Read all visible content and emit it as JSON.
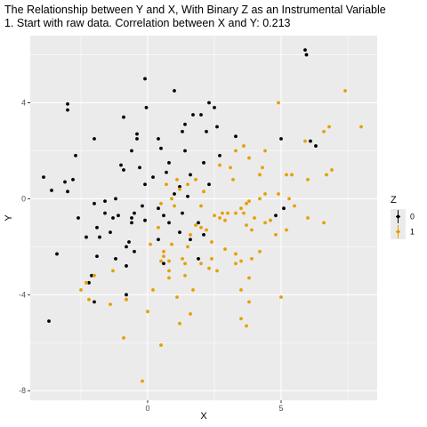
{
  "chart_data": {
    "type": "scatter",
    "title": "The Relationship between Y and X, With Binary Z as an Instrumental Variable",
    "subtitle": "1. Start with raw data. Correlation between X and Y: 0.213",
    "xlabel": "X",
    "ylabel": "Y",
    "xlim": [
      -4.4,
      8.6
    ],
    "ylim": [
      -8.4,
      6.8
    ],
    "x_ticks": [
      0,
      5
    ],
    "x_tick_labels": [
      "0",
      "5"
    ],
    "y_ticks": [
      -8,
      -4,
      0,
      4
    ],
    "y_tick_labels": [
      "-8",
      "-4",
      "0",
      "4"
    ],
    "grid": true,
    "legend": {
      "title": "Z",
      "position": "right",
      "entries": [
        "0",
        "1"
      ]
    },
    "colors": {
      "0": "#000000",
      "1": "#e69f00",
      "panel": "#ebebeb",
      "grid": "#ffffff"
    },
    "series": [
      {
        "name": "0",
        "points": [
          [
            5.9,
            6.2
          ],
          [
            5.95,
            6.0
          ],
          [
            -0.1,
            5.0
          ],
          [
            1.0,
            4.5
          ],
          [
            2.3,
            4.0
          ],
          [
            2.5,
            3.8
          ],
          [
            -3.0,
            3.95
          ],
          [
            -3.0,
            3.7
          ],
          [
            -0.05,
            3.8
          ],
          [
            2.0,
            3.5
          ],
          [
            -0.9,
            3.4
          ],
          [
            1.7,
            3.5
          ],
          [
            1.4,
            3.1
          ],
          [
            1.3,
            2.8
          ],
          [
            -0.4,
            2.7
          ],
          [
            -0.4,
            2.5
          ],
          [
            0.4,
            2.5
          ],
          [
            2.2,
            2.8
          ],
          [
            2.6,
            3.0
          ],
          [
            3.3,
            2.6
          ],
          [
            -2.0,
            2.5
          ],
          [
            5.0,
            2.5
          ],
          [
            6.1,
            2.4
          ],
          [
            6.3,
            2.2
          ],
          [
            0.5,
            2.1
          ],
          [
            1.4,
            2.0
          ],
          [
            -0.6,
            2.0
          ],
          [
            0.8,
            1.5
          ],
          [
            2.7,
            1.8
          ],
          [
            2.1,
            1.5
          ],
          [
            -2.7,
            1.8
          ],
          [
            -1.0,
            1.4
          ],
          [
            -0.9,
            1.2
          ],
          [
            -0.3,
            1.3
          ],
          [
            0.7,
            1.1
          ],
          [
            1.6,
            1.0
          ],
          [
            -3.9,
            0.9
          ],
          [
            -2.8,
            0.8
          ],
          [
            -3.1,
            0.7
          ],
          [
            0.2,
            0.9
          ],
          [
            -0.1,
            0.6
          ],
          [
            1.2,
            0.5
          ],
          [
            2.3,
            0.6
          ],
          [
            -3.6,
            0.35
          ],
          [
            -3.0,
            0.3
          ],
          [
            -1.6,
            -0.1
          ],
          [
            -1.2,
            0.0
          ],
          [
            1.0,
            0.2
          ],
          [
            1.5,
            0.1
          ],
          [
            -2.0,
            -0.2
          ],
          [
            -0.2,
            -0.3
          ],
          [
            0.4,
            -0.4
          ],
          [
            -1.6,
            -0.6
          ],
          [
            -1.1,
            -0.7
          ],
          [
            -0.5,
            -0.6
          ],
          [
            -0.6,
            -0.8
          ],
          [
            0.6,
            -0.7
          ],
          [
            1.3,
            -0.6
          ],
          [
            -1.3,
            -0.8
          ],
          [
            -2.6,
            -0.8
          ],
          [
            -0.6,
            -1.0
          ],
          [
            -0.1,
            -0.9
          ],
          [
            0.8,
            -1.0
          ],
          [
            1.9,
            -1.0
          ],
          [
            -1.9,
            -1.2
          ],
          [
            -1.4,
            -1.4
          ],
          [
            -2.3,
            -1.6
          ],
          [
            1.2,
            -1.4
          ],
          [
            -1.8,
            -1.6
          ],
          [
            0.4,
            -1.7
          ],
          [
            -0.7,
            -1.8
          ],
          [
            -0.8,
            -2.0
          ],
          [
            2.1,
            -1.5
          ],
          [
            1.6,
            -1.7
          ],
          [
            -0.5,
            -2.2
          ],
          [
            -1.9,
            -2.4
          ],
          [
            -1.2,
            -2.5
          ],
          [
            4.8,
            -0.7
          ],
          [
            5.1,
            -0.4
          ],
          [
            0.6,
            -2.7
          ],
          [
            1.9,
            -2.5
          ],
          [
            -0.8,
            -2.8
          ],
          [
            -3.4,
            -2.3
          ],
          [
            -2.1,
            -3.2
          ],
          [
            -2.2,
            -3.5
          ],
          [
            -0.8,
            -4.0
          ],
          [
            -2.0,
            -4.3
          ],
          [
            -3.7,
            -5.1
          ]
        ]
      },
      {
        "name": "1",
        "points": [
          [
            7.4,
            4.5
          ],
          [
            4.9,
            4.0
          ],
          [
            8.0,
            3.0
          ],
          [
            6.8,
            3.0
          ],
          [
            6.6,
            2.8
          ],
          [
            5.9,
            2.4
          ],
          [
            3.6,
            2.2
          ],
          [
            3.3,
            2.0
          ],
          [
            4.4,
            2.0
          ],
          [
            3.8,
            1.7
          ],
          [
            2.7,
            1.4
          ],
          [
            3.1,
            1.3
          ],
          [
            4.3,
            1.3
          ],
          [
            5.2,
            1.0
          ],
          [
            5.4,
            1.0
          ],
          [
            4.2,
            1.0
          ],
          [
            6.9,
            1.2
          ],
          [
            6.7,
            1.0
          ],
          [
            6.0,
            0.8
          ],
          [
            3.2,
            0.8
          ],
          [
            1.1,
            0.8
          ],
          [
            1.8,
            0.8
          ],
          [
            1.5,
            0.6
          ],
          [
            0.7,
            0.6
          ],
          [
            1.2,
            0.4
          ],
          [
            2.1,
            0.3
          ],
          [
            4.4,
            0.2
          ],
          [
            4.9,
            0.2
          ],
          [
            4.2,
            0.0
          ],
          [
            5.3,
            0.0
          ],
          [
            3.7,
            -0.2
          ],
          [
            3.8,
            -0.1
          ],
          [
            0.5,
            -0.2
          ],
          [
            0.9,
            0.0
          ],
          [
            1.0,
            -0.3
          ],
          [
            2.0,
            -0.3
          ],
          [
            3.5,
            -0.4
          ],
          [
            5.5,
            -0.3
          ],
          [
            2.8,
            -0.6
          ],
          [
            2.7,
            -0.8
          ],
          [
            3.0,
            -0.6
          ],
          [
            3.3,
            -0.6
          ],
          [
            3.6,
            -0.6
          ],
          [
            4.0,
            -0.8
          ],
          [
            3.7,
            -1.1
          ],
          [
            4.6,
            -0.9
          ],
          [
            2.5,
            -0.7
          ],
          [
            2.9,
            -0.9
          ],
          [
            6.0,
            -0.8
          ],
          [
            4.4,
            -1.0
          ],
          [
            6.6,
            -1.0
          ],
          [
            1.8,
            -1.1
          ],
          [
            2.0,
            -1.2
          ],
          [
            0.4,
            -1.2
          ],
          [
            1.6,
            -1.5
          ],
          [
            2.4,
            -1.8
          ],
          [
            2.2,
            -1.3
          ],
          [
            3.9,
            -1.3
          ],
          [
            5.2,
            -1.3
          ],
          [
            0.1,
            -1.9
          ],
          [
            0.9,
            -1.9
          ],
          [
            1.5,
            -2.0
          ],
          [
            2.9,
            -2.1
          ],
          [
            4.8,
            -1.5
          ],
          [
            4.2,
            -2.2
          ],
          [
            3.9,
            -2.5
          ],
          [
            0.6,
            -2.2
          ],
          [
            3.3,
            -2.3
          ],
          [
            2.4,
            -2.5
          ],
          [
            0.5,
            -2.6
          ],
          [
            3.5,
            -2.6
          ],
          [
            1.4,
            -2.7
          ],
          [
            2.0,
            -2.7
          ],
          [
            3.3,
            -2.7
          ],
          [
            0.8,
            -2.6
          ],
          [
            2.3,
            -2.9
          ],
          [
            -1.3,
            -3.0
          ],
          [
            -2.0,
            -3.2
          ],
          [
            0.8,
            -3.0
          ],
          [
            1.4,
            -3.2
          ],
          [
            3.8,
            -3.3
          ],
          [
            -2.3,
            -3.5
          ],
          [
            -2.5,
            -3.8
          ],
          [
            1.7,
            -3.8
          ],
          [
            0.2,
            -3.8
          ],
          [
            3.5,
            -3.8
          ],
          [
            1.1,
            -4.1
          ],
          [
            5.0,
            -4.1
          ],
          [
            -0.8,
            -4.2
          ],
          [
            -1.4,
            -4.4
          ],
          [
            -2.2,
            -4.2
          ],
          [
            1.6,
            -4.8
          ],
          [
            0.0,
            -4.7
          ],
          [
            3.5,
            -5.0
          ],
          [
            -0.9,
            -5.8
          ],
          [
            0.5,
            -6.1
          ],
          [
            -0.2,
            -7.6
          ],
          [
            3.7,
            -5.3
          ],
          [
            1.2,
            -5.2
          ],
          [
            3.8,
            -4.3
          ],
          [
            0.8,
            -3.3
          ],
          [
            1.3,
            -2.5
          ],
          [
            0.6,
            -2.4
          ],
          [
            2.6,
            -3.0
          ]
        ]
      }
    ]
  }
}
